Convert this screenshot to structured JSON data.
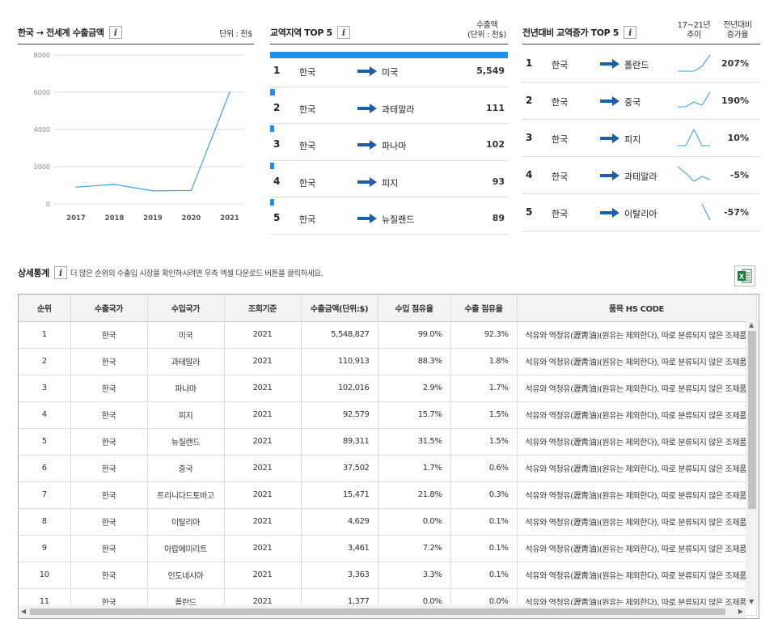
{
  "export_panel": {
    "title": "한국 → 전세계 수출금액",
    "unit": "단위 : 천$"
  },
  "chart_data": {
    "type": "line",
    "x": [
      "2017",
      "2018",
      "2019",
      "2020",
      "2021"
    ],
    "series": [
      {
        "values": [
          900,
          1050,
          700,
          720,
          6000
        ]
      }
    ],
    "ylim": [
      0,
      8000
    ],
    "yticks": [
      "0",
      "2000",
      "4000",
      "6000",
      "8000"
    ],
    "grid": true,
    "color": "#3fa0e4"
  },
  "top5": {
    "title": "교역지역 TOP 5",
    "value_header": "수출액\n(단위 : 천$)",
    "bar_color": "#1e90e8",
    "bar_fractions": [
      1.0,
      0.02,
      0.018,
      0.017,
      0.016
    ],
    "rows": [
      {
        "rank": "1",
        "from": "한국",
        "to": "미국",
        "value": "5,549"
      },
      {
        "rank": "2",
        "from": "한국",
        "to": "과테말라",
        "value": "111"
      },
      {
        "rank": "3",
        "from": "한국",
        "to": "파나마",
        "value": "102"
      },
      {
        "rank": "4",
        "from": "한국",
        "to": "피지",
        "value": "93"
      },
      {
        "rank": "5",
        "from": "한국",
        "to": "뉴질랜드",
        "value": "89"
      }
    ]
  },
  "growth": {
    "title": "전년대비 교역증가 TOP 5",
    "trend_header": "17~21년\n추이",
    "rate_header": "전년대비\n증가율",
    "rows": [
      {
        "rank": "1",
        "from": "한국",
        "to": "폴란드",
        "rate": "207%",
        "trend": [
          0,
          0,
          0,
          0.3,
          1
        ]
      },
      {
        "rank": "2",
        "from": "한국",
        "to": "중국",
        "rate": "190%",
        "trend": [
          0.1,
          0.1,
          0.4,
          0.2,
          1
        ]
      },
      {
        "rank": "3",
        "from": "한국",
        "to": "피지",
        "rate": "10%",
        "trend": [
          0,
          0,
          1,
          0,
          0
        ]
      },
      {
        "rank": "4",
        "from": "한국",
        "to": "과테말라",
        "rate": "-5%",
        "trend": [
          1,
          0.6,
          0.1,
          0.4,
          0.2
        ]
      },
      {
        "rank": "5",
        "from": "한국",
        "to": "이탈리아",
        "rate": "-57%",
        "trend": [
          null,
          null,
          null,
          1,
          0
        ]
      }
    ]
  },
  "detail": {
    "title": "상세통계",
    "desc": "더 많은 순위의 수출입 시장을 확인하시려면 우측 엑셀 다운로드 버튼을 클릭하세요.",
    "excel_icon": "excel-icon",
    "columns": [
      "순위",
      "수출국가",
      "수입국가",
      "조회기준",
      "수출금액(단위:$)",
      "수입 점유율",
      "수출 점유율",
      "품목 HS CODE"
    ],
    "rows": [
      [
        "1",
        "한국",
        "미국",
        "2021",
        "5,548,827",
        "99.0%",
        "92.3%",
        "석유와 역청유(瀝靑油)(원유는 제외한다), 따로 분류되지 않은 조제품[석유나 …"
      ],
      [
        "2",
        "한국",
        "과테말라",
        "2021",
        "110,913",
        "88.3%",
        "1.8%",
        "석유와 역청유(瀝靑油)(원유는 제외한다), 따로 분류되지 않은 조제품[석유나 …"
      ],
      [
        "3",
        "한국",
        "파나마",
        "2021",
        "102,016",
        "2.9%",
        "1.7%",
        "석유와 역청유(瀝靑油)(원유는 제외한다), 따로 분류되지 않은 조제품[석유나 …"
      ],
      [
        "4",
        "한국",
        "피지",
        "2021",
        "92,579",
        "15.7%",
        "1.5%",
        "석유와 역청유(瀝靑油)(원유는 제외한다), 따로 분류되지 않은 조제품[석유나 …"
      ],
      [
        "5",
        "한국",
        "뉴질랜드",
        "2021",
        "89,311",
        "31.5%",
        "1.5%",
        "석유와 역청유(瀝靑油)(원유는 제외한다), 따로 분류되지 않은 조제품[석유나 …"
      ],
      [
        "6",
        "한국",
        "중국",
        "2021",
        "37,502",
        "1.7%",
        "0.6%",
        "석유와 역청유(瀝靑油)(원유는 제외한다), 따로 분류되지 않은 조제품[석유나 …"
      ],
      [
        "7",
        "한국",
        "트리니다드토바고",
        "2021",
        "15,471",
        "21.8%",
        "0.3%",
        "석유와 역청유(瀝靑油)(원유는 제외한다), 따로 분류되지 않은 조제품[석유나 …"
      ],
      [
        "8",
        "한국",
        "이탈리아",
        "2021",
        "4,629",
        "0.0%",
        "0.1%",
        "석유와 역청유(瀝靑油)(원유는 제외한다), 따로 분류되지 않은 조제품[석유나 …"
      ],
      [
        "9",
        "한국",
        "아랍에미리트",
        "2021",
        "3,461",
        "7.2%",
        "0.1%",
        "석유와 역청유(瀝靑油)(원유는 제외한다), 따로 분류되지 않은 조제품[석유나 …"
      ],
      [
        "10",
        "한국",
        "인도네시아",
        "2021",
        "3,363",
        "3.3%",
        "0.1%",
        "석유와 역청유(瀝靑油)(원유는 제외한다), 따로 분류되지 않은 조제품[석유나 …"
      ],
      [
        "11",
        "한국",
        "폴란드",
        "2021",
        "1,377",
        "0.0%",
        "0.0%",
        "석유와 역청유(瀝靑油)(원유는 제외한다), 따로 분류되지 않은 조제품[석유나 …"
      ]
    ]
  }
}
